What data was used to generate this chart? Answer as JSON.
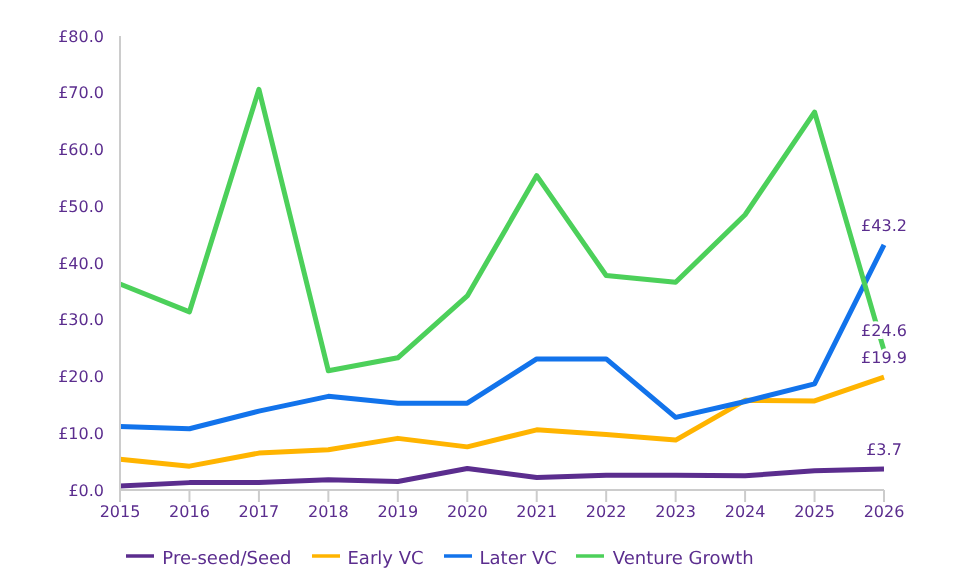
{
  "chart_data": {
    "type": "line",
    "categories": [
      "2015",
      "2016",
      "2017",
      "2018",
      "2019",
      "2020",
      "2021",
      "2022",
      "2023",
      "2024",
      "2025",
      "2026"
    ],
    "series": [
      {
        "name": "Pre-seed/Seed",
        "color": "#5b2d8e",
        "values": [
          0.7,
          1.3,
          1.3,
          1.8,
          1.5,
          3.8,
          2.2,
          2.6,
          2.6,
          2.5,
          3.4,
          3.7
        ],
        "value_labels": [
          null,
          null,
          null,
          null,
          null,
          null,
          null,
          null,
          null,
          null,
          null,
          "£3.7"
        ]
      },
      {
        "name": "Early VC",
        "color": "#ffb400",
        "values": [
          5.4,
          4.2,
          6.5,
          7.1,
          9.1,
          7.6,
          10.6,
          9.8,
          8.8,
          15.8,
          15.7,
          19.9
        ],
        "value_labels": [
          null,
          null,
          null,
          null,
          null,
          null,
          null,
          null,
          null,
          null,
          null,
          "£19.9"
        ]
      },
      {
        "name": "Later VC",
        "color": "#1273eb",
        "values": [
          11.2,
          10.8,
          13.9,
          16.5,
          15.3,
          15.3,
          23.1,
          23.1,
          12.8,
          15.6,
          18.7,
          43.2
        ],
        "value_labels": [
          null,
          null,
          null,
          null,
          null,
          null,
          null,
          null,
          null,
          null,
          null,
          "£43.2"
        ]
      },
      {
        "name": "Venture Growth",
        "color": "#4cd05a",
        "values": [
          36.3,
          31.4,
          70.6,
          21.0,
          23.3,
          34.2,
          55.4,
          37.8,
          36.6,
          48.5,
          66.6,
          24.6
        ],
        "value_labels": [
          null,
          null,
          null,
          null,
          null,
          null,
          null,
          null,
          null,
          null,
          null,
          "£24.6"
        ]
      }
    ],
    "ylim": [
      0,
      80
    ],
    "yticks": [
      {
        "value": 0,
        "label": "£0.0"
      },
      {
        "value": 10,
        "label": "£10.0"
      },
      {
        "value": 20,
        "label": "£20.0"
      },
      {
        "value": 30,
        "label": "£30.0"
      },
      {
        "value": 40,
        "label": "£40.0"
      },
      {
        "value": 50,
        "label": "£50.0"
      },
      {
        "value": 60,
        "label": "£60.0"
      },
      {
        "value": 70,
        "label": "£70.0"
      },
      {
        "value": 80,
        "label": "£80.0"
      }
    ],
    "grid": false,
    "legend": "bottom",
    "marker": "none",
    "line_style": "solid"
  }
}
